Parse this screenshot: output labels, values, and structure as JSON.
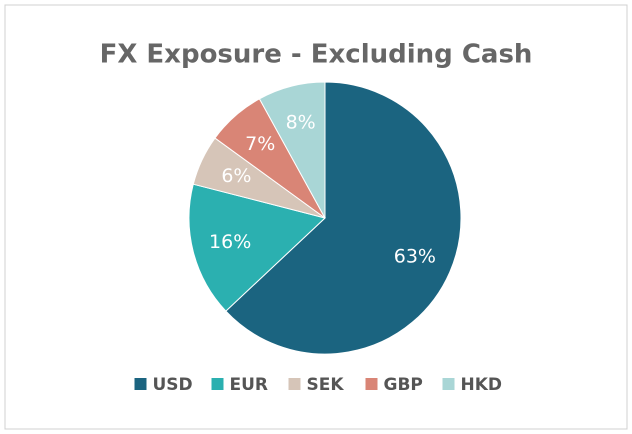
{
  "chart_data": {
    "type": "pie",
    "title": "FX Exposure - Excluding Cash",
    "categories": [
      "USD",
      "EUR",
      "SEK",
      "GBP",
      "HKD"
    ],
    "values": [
      63,
      16,
      6,
      7,
      8
    ],
    "value_labels": [
      "63%",
      "16%",
      "6%",
      "7%",
      "8%"
    ],
    "colors": [
      "#1b6480",
      "#2bb0b0",
      "#d6c5b8",
      "#d98576",
      "#a9d6d6"
    ],
    "legend": "bottom"
  }
}
